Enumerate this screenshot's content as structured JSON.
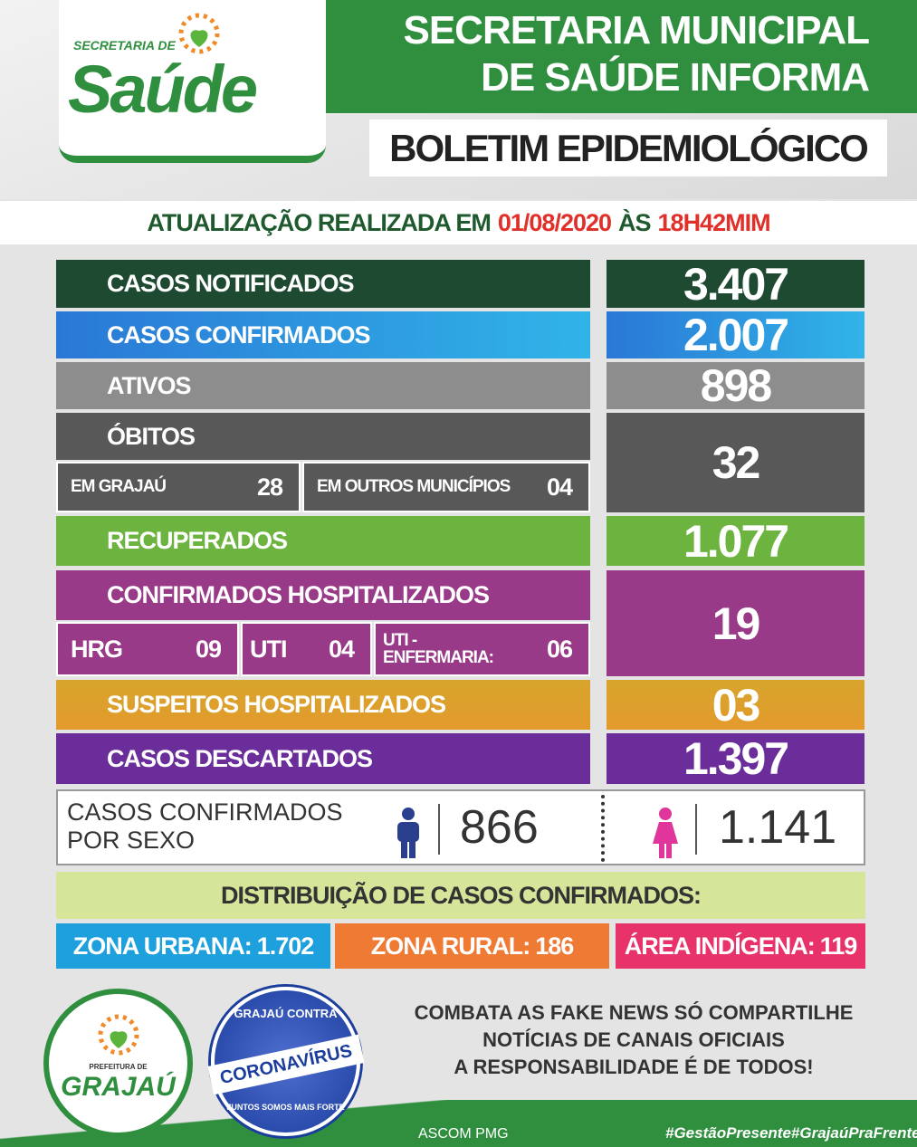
{
  "header": {
    "logo_small": "SECRETARIA DE",
    "logo_big": "Saúde",
    "title_line1": "SECRETARIA MUNICIPAL",
    "title_line2": "DE SAÚDE INFORMA",
    "subtitle": "BOLETIM EPIDEMIOLÓGICO"
  },
  "update": {
    "prefix": "ATUALIZAÇÃO REALIZADA EM",
    "date": "01/08/2020",
    "middle": "ÀS",
    "time": "18H42MIM"
  },
  "rows": [
    {
      "label": "CASOS NOTIFICADOS",
      "value": "3.407"
    },
    {
      "label": "CASOS CONFIRMADOS",
      "value": "2.007"
    },
    {
      "label": "ATIVOS",
      "value": "898"
    },
    {
      "label": "ÓBITOS",
      "value": "32",
      "details": [
        {
          "label": "EM GRAJAÚ",
          "value": "28"
        },
        {
          "label": "EM OUTROS MUNICÍPIOS",
          "value": "04"
        }
      ]
    },
    {
      "label": "RECUPERADOS",
      "value": "1.077"
    },
    {
      "label": "CONFIRMADOS HOSPITALIZADOS",
      "value": "19",
      "details": [
        {
          "label": "HRG",
          "value": "09"
        },
        {
          "label": "UTI",
          "value": "04"
        },
        {
          "label": "UTI - ENFERMARIA:",
          "value": "06"
        }
      ]
    },
    {
      "label": "SUSPEITOS HOSPITALIZADOS",
      "value": "03"
    },
    {
      "label": "CASOS DESCARTADOS",
      "value": "1.397"
    }
  ],
  "by_sex": {
    "label_line1": "CASOS CONFIRMADOS",
    "label_line2": "POR SEXO",
    "male": "866",
    "female": "1.141"
  },
  "distribution": {
    "title": "DISTRIBUIÇÃO DE CASOS CONFIRMADOS:",
    "zones": [
      {
        "label": "ZONA URBANA:",
        "value": "1.702"
      },
      {
        "label": "ZONA RURAL:",
        "value": "186"
      },
      {
        "label": "ÁREA INDÍGENA:",
        "value": "119"
      }
    ]
  },
  "footer": {
    "message": [
      "COMBATA AS FAKE NEWS SÓ COMPARTILHE",
      "NOTÍCIAS DE CANAIS OFICIAIS",
      "A RESPONSABILIDADE É DE TODOS!"
    ],
    "logo1_top": "PREFEITURA DE",
    "logo1_name": "GRAJAÚ",
    "logo2_top": "GRAJAÚ CONTRA",
    "logo2_banner": "CORONAVÍRUS",
    "logo2_bottom": "JUNTOS SOMOS MAIS FORTE",
    "credit": "ASCOM PMG",
    "hashtags": "#GestãoPresente#GrajaúPraFrente"
  }
}
